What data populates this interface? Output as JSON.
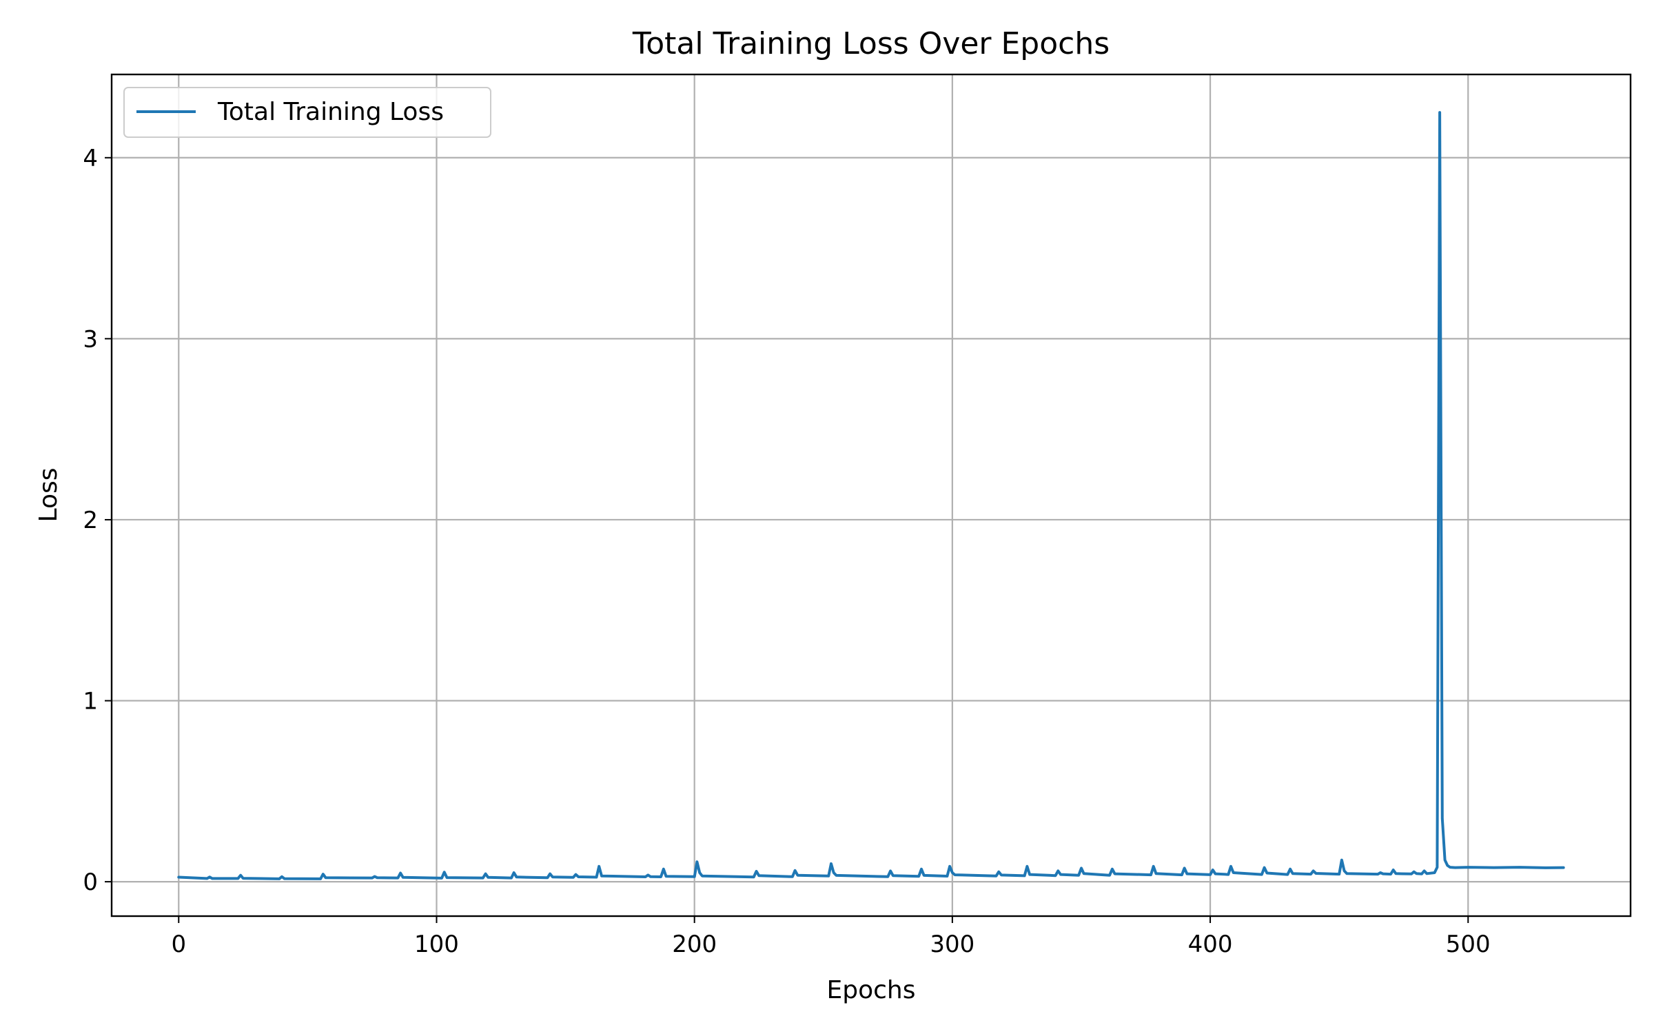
{
  "chart_data": {
    "type": "line",
    "title": "Total Training Loss Over Epochs",
    "xlabel": "Epochs",
    "ylabel": "Loss",
    "xlim": [
      -26,
      563
    ],
    "ylim": [
      -0.19,
      4.46
    ],
    "xticks": [
      0,
      100,
      200,
      300,
      400,
      500
    ],
    "yticks": [
      0,
      1,
      2,
      3,
      4
    ],
    "grid": true,
    "legend_placement": "top-left",
    "colors": {
      "series": "#1f77b4",
      "grid": "#b0b0b0",
      "axes": "#000000"
    },
    "series": [
      {
        "name": "Total Training Loss",
        "x": [
          0,
          11,
          12,
          13,
          23,
          24,
          25,
          39,
          40,
          41,
          55,
          56,
          57,
          75,
          76,
          77,
          85,
          86,
          87,
          102,
          103,
          104,
          118,
          119,
          120,
          129,
          130,
          131,
          143,
          144,
          145,
          153,
          154,
          155,
          162,
          163,
          164,
          181,
          182,
          183,
          187,
          188,
          189,
          200,
          201,
          202,
          203,
          223,
          224,
          225,
          238,
          239,
          240,
          252,
          253,
          254,
          255,
          275,
          276,
          277,
          287,
          288,
          289,
          298,
          299,
          300,
          301,
          317,
          318,
          319,
          328,
          329,
          330,
          340,
          341,
          342,
          349,
          350,
          351,
          361,
          362,
          363,
          377,
          378,
          379,
          389,
          390,
          391,
          400,
          401,
          402,
          407,
          408,
          409,
          420,
          421,
          422,
          430,
          431,
          432,
          439,
          440,
          441,
          450,
          451,
          452,
          453,
          465,
          466,
          467,
          470,
          471,
          472,
          478,
          479,
          480,
          482,
          483,
          484,
          487,
          488,
          489,
          490,
          491,
          492,
          493,
          495,
          500,
          510,
          520,
          530,
          537
        ],
        "y": [
          0.025,
          0.018,
          0.026,
          0.018,
          0.018,
          0.036,
          0.019,
          0.016,
          0.028,
          0.017,
          0.016,
          0.042,
          0.022,
          0.021,
          0.029,
          0.022,
          0.021,
          0.048,
          0.024,
          0.02,
          0.053,
          0.023,
          0.021,
          0.044,
          0.024,
          0.021,
          0.05,
          0.026,
          0.022,
          0.044,
          0.026,
          0.024,
          0.04,
          0.027,
          0.025,
          0.085,
          0.032,
          0.027,
          0.037,
          0.028,
          0.027,
          0.07,
          0.03,
          0.028,
          0.11,
          0.05,
          0.032,
          0.026,
          0.058,
          0.034,
          0.028,
          0.062,
          0.036,
          0.032,
          0.1,
          0.05,
          0.035,
          0.028,
          0.06,
          0.034,
          0.03,
          0.07,
          0.035,
          0.031,
          0.085,
          0.05,
          0.038,
          0.032,
          0.055,
          0.037,
          0.033,
          0.085,
          0.04,
          0.034,
          0.06,
          0.04,
          0.036,
          0.075,
          0.045,
          0.036,
          0.07,
          0.044,
          0.038,
          0.085,
          0.045,
          0.038,
          0.075,
          0.044,
          0.039,
          0.065,
          0.044,
          0.04,
          0.085,
          0.05,
          0.04,
          0.078,
          0.048,
          0.04,
          0.07,
          0.045,
          0.042,
          0.06,
          0.046,
          0.042,
          0.12,
          0.06,
          0.045,
          0.042,
          0.05,
          0.044,
          0.042,
          0.065,
          0.045,
          0.043,
          0.055,
          0.045,
          0.043,
          0.06,
          0.045,
          0.05,
          0.08,
          4.25,
          0.35,
          0.12,
          0.09,
          0.08,
          0.078,
          0.08,
          0.078,
          0.08,
          0.077,
          0.078
        ]
      }
    ]
  }
}
